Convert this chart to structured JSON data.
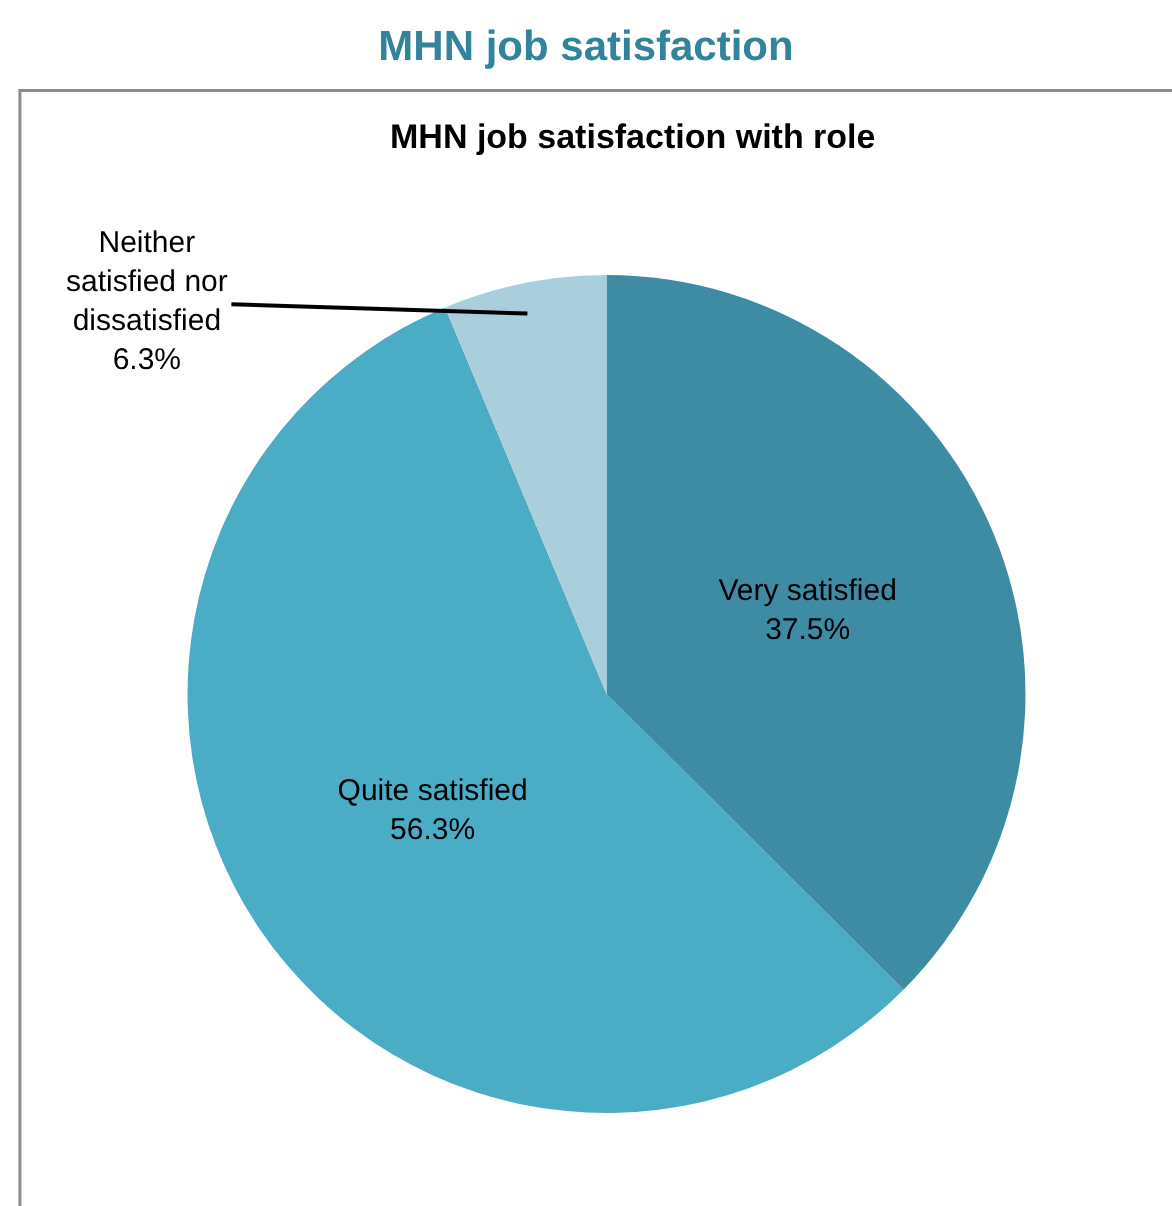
{
  "chart_data": {
    "type": "pie",
    "title": "MHN job satisfaction",
    "subtitle": "MHN job satisfaction with role",
    "categories": [
      "Very satisfied",
      "Quite satisfied",
      "Neither satisfied nor dissatisfied"
    ],
    "values": [
      37.5,
      56.3,
      6.3
    ],
    "colors": [
      "#3d8ca3",
      "#4bacc6",
      "#a9cfdd"
    ],
    "value_labels": [
      "37.5%",
      "56.3%",
      "6.3%"
    ],
    "legend": false
  }
}
